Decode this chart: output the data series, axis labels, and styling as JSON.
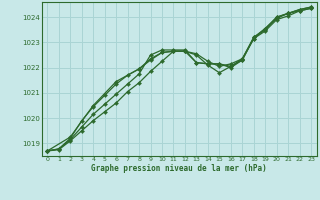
{
  "title": "Graphe pression niveau de la mer (hPa)",
  "bg_color": "#c8e8e8",
  "grid_color": "#aad4d4",
  "line_color": "#2d6a2d",
  "xlim": [
    -0.5,
    23.5
  ],
  "ylim": [
    1018.5,
    1024.6
  ],
  "yticks": [
    1019,
    1020,
    1021,
    1022,
    1023,
    1024
  ],
  "xticks": [
    0,
    1,
    2,
    3,
    4,
    5,
    6,
    7,
    8,
    9,
    10,
    11,
    12,
    13,
    14,
    15,
    16,
    17,
    18,
    19,
    20,
    21,
    22,
    23
  ],
  "series": [
    {
      "x": [
        0,
        1,
        2,
        3,
        4,
        5,
        6,
        7,
        8,
        9,
        10,
        11,
        12,
        13,
        14,
        15,
        16,
        17,
        18,
        19,
        20,
        21,
        22,
        23
      ],
      "y": [
        1018.7,
        1018.75,
        1019.1,
        1019.5,
        1019.9,
        1020.25,
        1020.6,
        1021.05,
        1021.4,
        1021.85,
        1022.25,
        1022.65,
        1022.65,
        1022.2,
        1022.15,
        1022.15,
        1022.05,
        1022.35,
        1023.15,
        1023.55,
        1023.95,
        1024.15,
        1024.25,
        1024.35
      ]
    },
    {
      "x": [
        0,
        1,
        2,
        3,
        4,
        5,
        6,
        7,
        8,
        9,
        10,
        11,
        12,
        13,
        14,
        15,
        16,
        17,
        18,
        19,
        20,
        21,
        22,
        23
      ],
      "y": [
        1018.7,
        1018.78,
        1019.15,
        1019.65,
        1020.15,
        1020.55,
        1020.95,
        1021.35,
        1021.75,
        1022.5,
        1022.7,
        1022.7,
        1022.7,
        1022.2,
        1022.15,
        1022.15,
        1022.0,
        1022.3,
        1023.2,
        1023.55,
        1024.0,
        1024.15,
        1024.3,
        1024.4
      ]
    },
    {
      "x": [
        0,
        2,
        4,
        6,
        8,
        9,
        10,
        11,
        12,
        13,
        14,
        15,
        16,
        17,
        18,
        19,
        20,
        21,
        22,
        23
      ],
      "y": [
        1018.7,
        1019.25,
        1020.5,
        1021.45,
        1021.95,
        1022.35,
        1022.6,
        1022.65,
        1022.65,
        1022.55,
        1022.25,
        1022.05,
        1022.15,
        1022.35,
        1023.2,
        1023.5,
        1024.0,
        1024.15,
        1024.3,
        1024.4
      ]
    },
    {
      "x": [
        0,
        1,
        2,
        3,
        4,
        5,
        6,
        7,
        8,
        9,
        10,
        11,
        12,
        13,
        14,
        15,
        16,
        17,
        18,
        19,
        20,
        21,
        22,
        23
      ],
      "y": [
        1018.7,
        1018.78,
        1019.2,
        1019.9,
        1020.45,
        1020.9,
        1021.35,
        1021.7,
        1021.95,
        1022.3,
        1022.6,
        1022.65,
        1022.65,
        1022.5,
        1022.1,
        1021.8,
        1022.05,
        1022.3,
        1023.15,
        1023.45,
        1023.9,
        1024.05,
        1024.25,
        1024.35
      ]
    }
  ]
}
